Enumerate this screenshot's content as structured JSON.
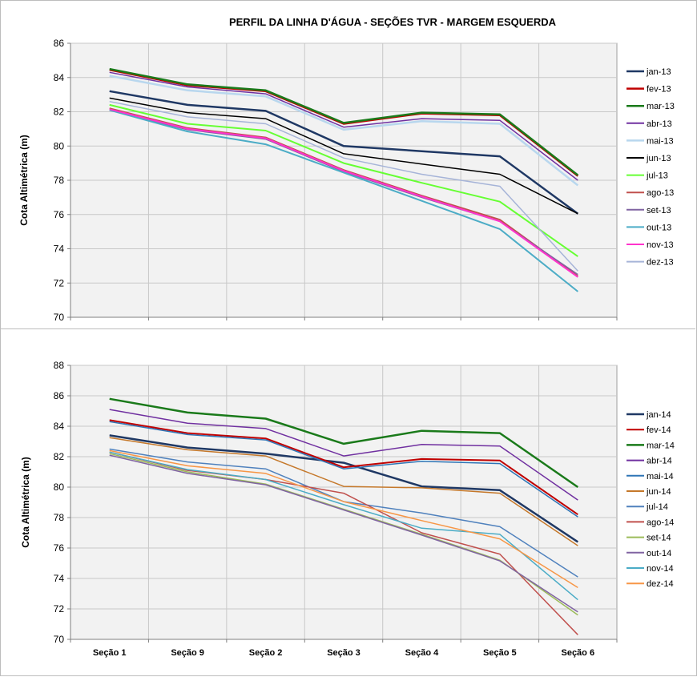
{
  "chart_data": [
    {
      "type": "line",
      "title": "PERFIL DA LINHA D'ÁGUA - SEÇÕES TVR - MARGEM ESQUERDA",
      "xlabel": "",
      "ylabel": "Cota  Altimétrica (m)",
      "ylim": [
        70,
        86
      ],
      "yticks": [
        70,
        72,
        74,
        76,
        78,
        80,
        82,
        84,
        86
      ],
      "categories": [
        "",
        "",
        "",
        "",
        "",
        "",
        ""
      ],
      "grid": true,
      "legend_position": "right",
      "series": [
        {
          "name": "jan-13",
          "color": "#1f3864",
          "width": 2.5,
          "values": [
            83.2,
            82.4,
            82.05,
            80.0,
            79.7,
            79.4,
            76.05
          ]
        },
        {
          "name": "fev-13",
          "color": "#c00000",
          "width": 2.5,
          "values": [
            84.45,
            83.55,
            83.2,
            81.3,
            81.9,
            81.8,
            78.25
          ]
        },
        {
          "name": "mar-13",
          "color": "#1a7a1a",
          "width": 2.5,
          "values": [
            84.5,
            83.6,
            83.25,
            81.35,
            81.95,
            81.85,
            78.3
          ]
        },
        {
          "name": "abr-13",
          "color": "#7030a0",
          "width": 1.5,
          "values": [
            84.3,
            83.45,
            83.05,
            81.1,
            81.6,
            81.5,
            78.0
          ]
        },
        {
          "name": "mai-13",
          "color": "#b8d7ee",
          "width": 2.5,
          "values": [
            84.1,
            83.25,
            82.9,
            80.95,
            81.45,
            81.3,
            77.7
          ]
        },
        {
          "name": "jun-13",
          "color": "#000000",
          "width": 1.5,
          "values": [
            82.8,
            81.95,
            81.6,
            79.55,
            78.95,
            78.35,
            76.05
          ]
        },
        {
          "name": "jul-13",
          "color": "#66ff33",
          "width": 2,
          "values": [
            82.4,
            81.3,
            80.9,
            79.0,
            77.85,
            76.75,
            73.55
          ]
        },
        {
          "name": "ago-13",
          "color": "#c0504d",
          "width": 2,
          "values": [
            82.2,
            81.05,
            80.5,
            78.6,
            77.1,
            75.7,
            72.4
          ]
        },
        {
          "name": "set-13",
          "color": "#8064a2",
          "width": 1.5,
          "values": [
            82.1,
            80.95,
            80.4,
            78.5,
            77.0,
            75.6,
            72.5
          ]
        },
        {
          "name": "out-13",
          "color": "#4bacc6",
          "width": 2,
          "values": [
            82.1,
            80.85,
            80.1,
            78.45,
            76.8,
            75.15,
            71.5
          ]
        },
        {
          "name": "nov-13",
          "color": "#ff33cc",
          "width": 2,
          "values": [
            82.15,
            81.0,
            80.45,
            78.55,
            77.05,
            75.6,
            72.35
          ]
        },
        {
          "name": "dez-13",
          "color": "#a6b4d8",
          "width": 1.5,
          "values": [
            82.6,
            81.7,
            81.3,
            79.3,
            78.35,
            77.65,
            72.7
          ]
        }
      ]
    },
    {
      "type": "line",
      "title": "",
      "xlabel": "",
      "ylabel": "Cota  Altimétrica (m)",
      "ylim": [
        70,
        88
      ],
      "yticks": [
        70,
        72,
        74,
        76,
        78,
        80,
        82,
        84,
        86,
        88
      ],
      "categories": [
        "Seção 1",
        "Seção 9",
        "Seção 2",
        "Seção 3",
        "Seção 4",
        "Seção 5",
        "Seção 6"
      ],
      "grid": true,
      "legend_position": "right",
      "series": [
        {
          "name": "jan-14",
          "color": "#1f3864",
          "width": 2.5,
          "values": [
            83.4,
            82.6,
            82.2,
            81.6,
            80.05,
            79.8,
            76.4
          ]
        },
        {
          "name": "fev-14",
          "color": "#c00000",
          "width": 2,
          "values": [
            84.4,
            83.55,
            83.2,
            81.3,
            81.85,
            81.75,
            78.2
          ]
        },
        {
          "name": "mar-14",
          "color": "#1a7a1a",
          "width": 2.5,
          "values": [
            85.8,
            84.9,
            84.5,
            82.85,
            83.7,
            83.55,
            80.0
          ]
        },
        {
          "name": "abr-14",
          "color": "#7030a0",
          "width": 1.5,
          "values": [
            85.1,
            84.2,
            83.85,
            82.05,
            82.8,
            82.7,
            79.15
          ]
        },
        {
          "name": "mai-14",
          "color": "#2e75b6",
          "width": 1.5,
          "values": [
            84.3,
            83.45,
            83.1,
            81.2,
            81.7,
            81.55,
            78.05
          ]
        },
        {
          "name": "jun-14",
          "color": "#c5782a",
          "width": 1.5,
          "values": [
            83.25,
            82.45,
            82.05,
            80.05,
            79.95,
            79.6,
            76.15
          ]
        },
        {
          "name": "jul-14",
          "color": "#4f81bd",
          "width": 1.5,
          "values": [
            82.5,
            81.65,
            81.2,
            79.05,
            78.3,
            77.4,
            74.1
          ]
        },
        {
          "name": "ago-14",
          "color": "#c0504d",
          "width": 1.5,
          "values": [
            82.3,
            81.1,
            80.5,
            79.6,
            77.0,
            75.6,
            70.3
          ]
        },
        {
          "name": "set-14",
          "color": "#9bbb59",
          "width": 1.5,
          "values": [
            82.2,
            81.0,
            80.2,
            78.55,
            76.9,
            75.2,
            71.6
          ]
        },
        {
          "name": "out-14",
          "color": "#8064a2",
          "width": 1.5,
          "values": [
            82.1,
            80.9,
            80.15,
            78.5,
            76.85,
            75.15,
            71.8
          ]
        },
        {
          "name": "nov-14",
          "color": "#4bacc6",
          "width": 1.5,
          "values": [
            82.3,
            81.15,
            80.5,
            78.85,
            77.3,
            76.9,
            72.6
          ]
        },
        {
          "name": "dez-14",
          "color": "#f79646",
          "width": 1.5,
          "values": [
            82.4,
            81.4,
            80.9,
            79.05,
            77.8,
            76.6,
            73.4
          ]
        }
      ]
    }
  ]
}
